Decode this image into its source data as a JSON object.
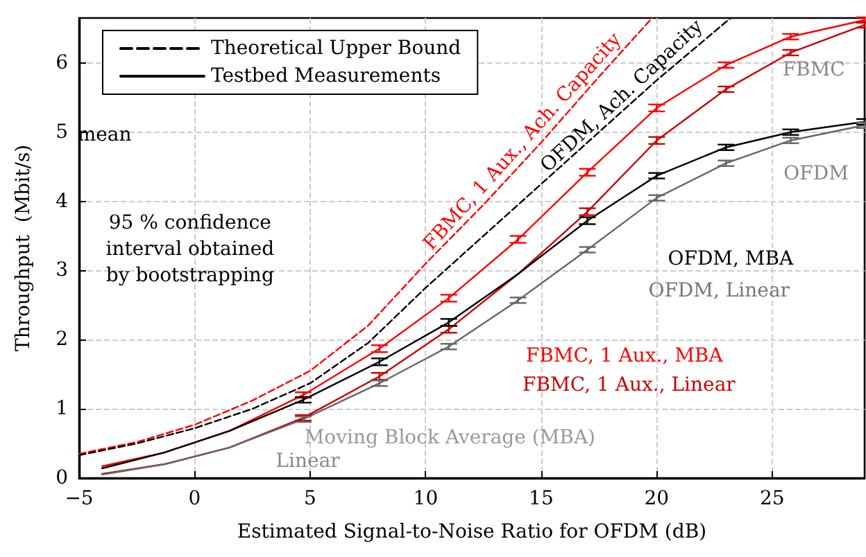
{
  "chart_data": {
    "type": "line",
    "xlabel": "Estimated Signal-to-Noise Ratio for OFDM (dB)",
    "ylabel": "Throughput  (Mbit/s)",
    "x": [
      -4,
      -1.3,
      1.5,
      4.7,
      8,
      11,
      14,
      17,
      20,
      23,
      25.8,
      29
    ],
    "series": [
      {
        "color": "#ff0000",
        "line_style": "dashed",
        "x": [
          -5,
          -2.5,
          0,
          2.5,
          5,
          7.5,
          10,
          12.5,
          15,
          17.5,
          19.8
        ],
        "values": [
          0.35,
          0.52,
          0.77,
          1.12,
          1.55,
          2.2,
          3.1,
          3.95,
          4.85,
          5.8,
          6.65
        ]
      },
      {
        "name": "Theoretical Upper Bound",
        "color": "#000000",
        "line_style": "dashed",
        "x": [
          -5,
          -2.5,
          0,
          2.5,
          5,
          7.5,
          10,
          12.5,
          15,
          17.5,
          20,
          23.2
        ],
        "values": [
          0.33,
          0.5,
          0.72,
          1.0,
          1.37,
          1.95,
          2.75,
          3.5,
          4.25,
          5.0,
          5.75,
          6.65
        ]
      },
      {
        "color": "#ff0000",
        "line_style": "solid",
        "values": [
          0.17,
          0.37,
          0.68,
          1.2,
          1.87,
          2.6,
          3.45,
          4.42,
          5.35,
          5.97,
          6.38,
          6.62
        ],
        "errors": [
          null,
          null,
          null,
          0.04,
          0.05,
          0.05,
          0.05,
          0.05,
          0.05,
          0.04,
          0.04,
          0.04
        ]
      },
      {
        "color": "#cc0000",
        "line_style": "solid",
        "values": [
          0.06,
          0.2,
          0.44,
          0.87,
          1.47,
          2.15,
          2.95,
          3.85,
          4.88,
          5.62,
          6.15,
          6.55
        ],
        "errors": [
          null,
          null,
          null,
          0.04,
          0.05,
          0.05,
          null,
          0.05,
          0.05,
          0.04,
          0.04,
          0.04
        ]
      },
      {
        "name": "Testbed Measurements",
        "color": "#000000",
        "line_style": "solid",
        "values": [
          0.14,
          0.37,
          0.68,
          1.13,
          1.68,
          2.25,
          2.95,
          3.72,
          4.37,
          4.78,
          5.0,
          5.15
        ],
        "errors": [
          null,
          null,
          null,
          0.04,
          0.05,
          0.05,
          null,
          0.05,
          0.04,
          0.04,
          0.04,
          0.04
        ]
      },
      {
        "color": "#666666",
        "line_style": "solid",
        "values": [
          0.05,
          0.2,
          0.44,
          0.85,
          1.37,
          1.9,
          2.57,
          3.3,
          4.05,
          4.55,
          4.88,
          5.1
        ],
        "errors": [
          null,
          null,
          null,
          0.04,
          0.04,
          0.04,
          0.04,
          0.04,
          0.04,
          0.04,
          0.04,
          0.04
        ]
      }
    ],
    "annotations": [
      "mean",
      "95 % confidence\ninterval obtained\nby bootstrapping",
      "FBMC, 1 Aux., Ach. Capacity",
      "OFDM, Ach. Capacity",
      "OFDM, MBA",
      "OFDM, Linear",
      "FBMC, 1 Aux., MBA",
      "FBMC, 1 Aux., Linear",
      "FBMC",
      "OFDM",
      "Moving Block Average (MBA)",
      "Linear"
    ],
    "xlim": [
      -5,
      29
    ],
    "xticks": [
      -5,
      0,
      5,
      10,
      15,
      20,
      25
    ],
    "ylim": [
      0,
      6.65
    ],
    "yticks": [
      0,
      1,
      2,
      3,
      4,
      5,
      6
    ],
    "grid": true,
    "legend": "top left",
    "marker": "none"
  }
}
